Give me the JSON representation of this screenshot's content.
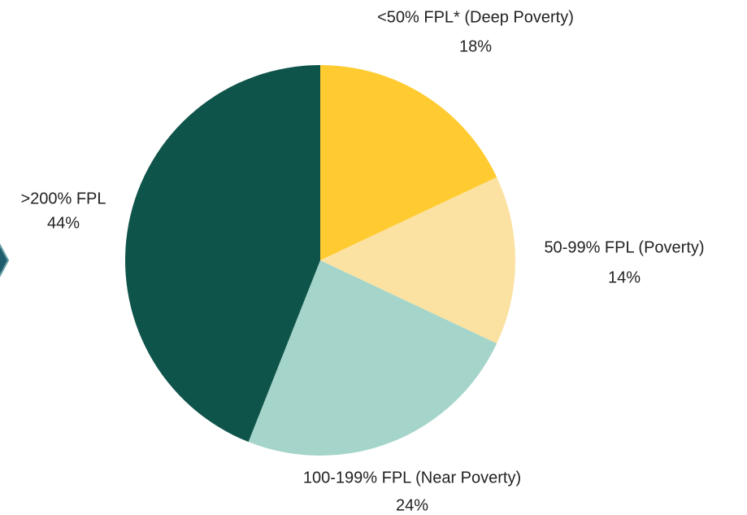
{
  "chart_data": {
    "type": "pie",
    "categories": [
      "<50% FPL* (Deep Poverty)",
      "50-99% FPL (Poverty)",
      "100-199% FPL (Near Poverty)",
      ">200% FPL"
    ],
    "values": [
      18,
      14,
      24,
      44
    ],
    "value_labels": [
      "18%",
      "14%",
      "24%",
      "44%"
    ],
    "colors": [
      "#FFCB31",
      "#FCE2A2",
      "#A5D5CA",
      "#0F544A"
    ]
  }
}
